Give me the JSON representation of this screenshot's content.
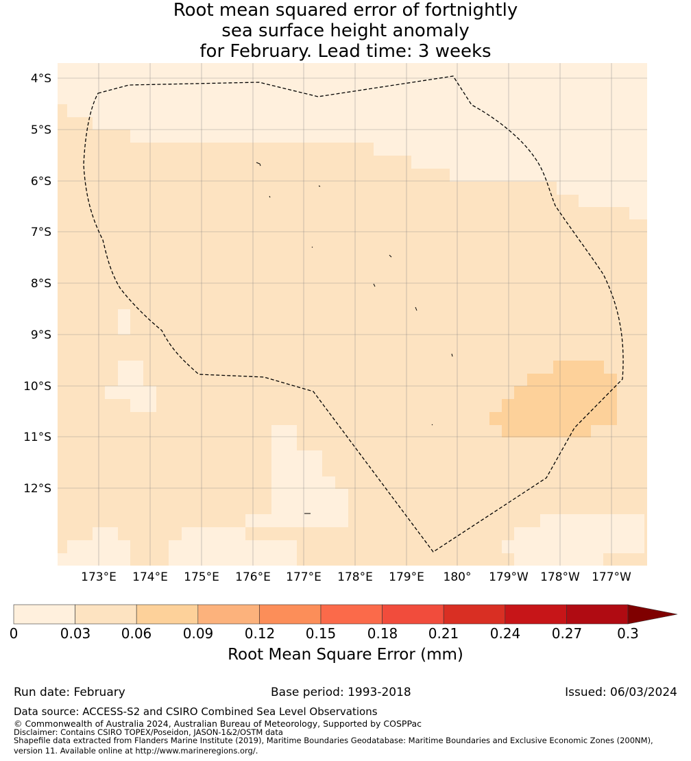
{
  "title": {
    "line1": "Root mean squared error of fortnightly",
    "line2": "sea surface height anomaly",
    "line3": "for February. Lead time: 3 weeks"
  },
  "map": {
    "lat_labels": [
      "4°S",
      "5°S",
      "6°S",
      "7°S",
      "8°S",
      "9°S",
      "10°S",
      "11°S",
      "12°S"
    ],
    "lon_labels": [
      "173°E",
      "174°E",
      "175°E",
      "176°E",
      "177°E",
      "178°E",
      "179°E",
      "180°",
      "179°W",
      "178°W",
      "177°W"
    ],
    "colors": {
      "bin_0_003": "#fff0dd",
      "bin_003_006": "#fde3c1",
      "bin_006_009": "#fdd19a",
      "outline": "#000000",
      "grid": "#808080"
    }
  },
  "colorbar": {
    "label": "Root Mean Square Error (mm)",
    "ticks": [
      "0",
      "0.03",
      "0.06",
      "0.09",
      "0.12",
      "0.15",
      "0.18",
      "0.21",
      "0.24",
      "0.27",
      "0.3"
    ],
    "colors": [
      "#fff0dd",
      "#fde3c1",
      "#fdd19a",
      "#fcb27c",
      "#fc8e59",
      "#fb6a4a",
      "#f14c3c",
      "#d92f23",
      "#c71518",
      "#b00b12"
    ],
    "extend_color": "#7f0000"
  },
  "footer": {
    "run_date": "Run date: February",
    "base_period": "Base period: 1993-2018",
    "issued": "Issued: 06/03/2024",
    "data_source": "Data source: ACCESS-S2 and CSIRO Combined Sea Level Observations",
    "copyright": "© Commonwealth of Australia 2024, Australian Bureau of Meteorology, Supported by COSPPac",
    "disclaimer": "Disclaimer: Contains CSIRO TOPEX/Poseidon, JASON-1&2/OSTM data",
    "shapefile1": "Shapefile data extracted from Flanders Marine Institute (2019), Maritime Boundaries Geodatabase: Maritime Boundaries and Exclusive Economic Zones (200NM),",
    "shapefile2": "version 11. Available online at http://www.marineregions.org/."
  }
}
